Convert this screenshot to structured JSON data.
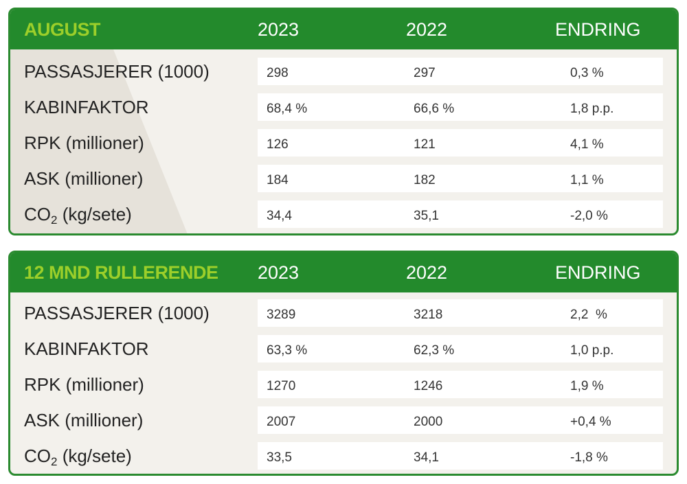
{
  "columns": [
    "2023",
    "2022",
    "ENDRING"
  ],
  "tables": [
    {
      "title": "AUGUST",
      "rows": [
        {
          "label": "PASSASJERER (1000)",
          "v2023": "298",
          "v2022": "297",
          "change": "0,3 %"
        },
        {
          "label": "KABINFAKTOR",
          "v2023": "68,4 %",
          "v2022": "66,6 %",
          "change": "1,8 p.p."
        },
        {
          "label": "RPK (millioner)",
          "v2023": "126",
          "v2022": "121",
          "change": "4,1 %"
        },
        {
          "label": "ASK (millioner)",
          "v2023": "184",
          "v2022": "182",
          "change": "1,1 %"
        },
        {
          "label_main": "CO",
          "label_sub": "2",
          "label_rest": " (kg/sete)",
          "v2023": "34,4",
          "v2022": "35,1",
          "change": "-2,0 %"
        }
      ]
    },
    {
      "title": "12 MND RULLERENDE",
      "rows": [
        {
          "label": "PASSASJERER (1000)",
          "v2023": "3289",
          "v2022": "3218",
          "change": "2,2  %"
        },
        {
          "label": "KABINFAKTOR",
          "v2023": "63,3 %",
          "v2022": "62,3 %",
          "change": "1,0 p.p."
        },
        {
          "label": "RPK (millioner)",
          "v2023": "1270",
          "v2022": "1246",
          "change": "1,9 %"
        },
        {
          "label": "ASK (millioner)",
          "v2023": "2007",
          "v2022": "2000",
          "change": "+0,4 %"
        },
        {
          "label_main": "CO",
          "label_sub": "2",
          "label_rest": " (kg/sete)",
          "v2023": "33,5",
          "v2022": "34,1",
          "change": "-1,8 %"
        }
      ]
    }
  ],
  "colors": {
    "header_green": "#238a2c",
    "title_lime": "#9ccf2a",
    "border_green": "#2a8a2f"
  }
}
